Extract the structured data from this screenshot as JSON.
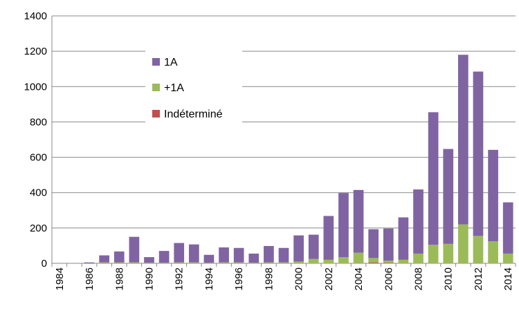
{
  "chart_data": {
    "type": "bar",
    "stacked": true,
    "categories": [
      "1984",
      "1985",
      "1986",
      "1987",
      "1988",
      "1989",
      "1990",
      "1991",
      "1992",
      "1993",
      "1994",
      "1995",
      "1996",
      "1997",
      "1998",
      "1999",
      "2000",
      "2001",
      "2002",
      "2003",
      "2004",
      "2005",
      "2006",
      "2007",
      "2008",
      "2009",
      "2010",
      "2011",
      "2012",
      "2013",
      "2014"
    ],
    "x_tick_labels": [
      "1984",
      "1986",
      "1988",
      "1990",
      "1992",
      "1994",
      "1996",
      "1998",
      "2000",
      "2002",
      "2004",
      "2006",
      "2008",
      "2010",
      "2012",
      "2014"
    ],
    "series": [
      {
        "name": "Indéterminé",
        "color": "#c0504d",
        "values": [
          0,
          0,
          0,
          0,
          0,
          0,
          0,
          0,
          0,
          0,
          0,
          0,
          0,
          0,
          0,
          0,
          0,
          0,
          0,
          0,
          0,
          5,
          3,
          0,
          0,
          0,
          0,
          0,
          0,
          0,
          0
        ]
      },
      {
        "name": "+1A",
        "color": "#9bbb59",
        "values": [
          0,
          0,
          0,
          5,
          5,
          5,
          3,
          3,
          5,
          5,
          3,
          5,
          5,
          3,
          5,
          5,
          10,
          25,
          20,
          35,
          60,
          25,
          12,
          20,
          55,
          105,
          110,
          220,
          155,
          125,
          55
        ]
      },
      {
        "name": "1A",
        "color": "#8064a2",
        "values": [
          0,
          0,
          5,
          40,
          62,
          145,
          32,
          67,
          110,
          102,
          45,
          85,
          82,
          52,
          93,
          82,
          148,
          137,
          248,
          363,
          355,
          163,
          182,
          240,
          363,
          750,
          537,
          960,
          930,
          517,
          290
        ]
      }
    ],
    "legend_order": [
      "1A",
      "+1A",
      "Indéterminé"
    ],
    "legend_position": "top-left",
    "ylim": [
      0,
      1400
    ],
    "y_ticks": [
      0,
      200,
      400,
      600,
      800,
      1000,
      1200,
      1400
    ],
    "grid": true,
    "title": "",
    "xlabel": "",
    "ylabel": ""
  }
}
